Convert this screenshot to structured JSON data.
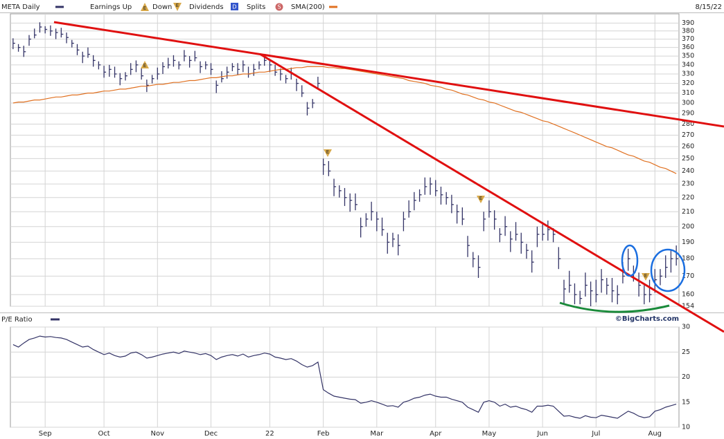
{
  "chart_data": [
    {
      "type": "ohlc",
      "title": "META Daily",
      "date": "8/15/22",
      "legend": {
        "earnings_up": "Earnings Up",
        "down": "Down",
        "dividends": "Dividends",
        "splits": "Splits"
      },
      "icons": {
        "earnings_up": "E",
        "earnings_down": "E",
        "dividends": "D",
        "splits": "S"
      },
      "credit": "©BigCharts.com",
      "log_scale": true,
      "grid": true,
      "ylim": [
        154,
        402
      ],
      "yticks": [
        154,
        160,
        170,
        180,
        190,
        200,
        210,
        220,
        230,
        240,
        250,
        260,
        270,
        280,
        290,
        300,
        310,
        320,
        330,
        340,
        350,
        360,
        370,
        380,
        390
      ],
      "series": [
        {
          "name": "META Daily",
          "color": "#333366",
          "high": [
            371,
            364,
            362,
            375,
            383,
            391,
            386,
            387,
            383,
            384,
            378,
            369,
            364,
            355,
            360,
            351,
            344,
            339,
            340,
            338,
            331,
            332,
            342,
            345,
            336,
            324,
            329,
            337,
            343,
            348,
            351,
            344,
            357,
            350,
            356,
            344,
            344,
            342,
            323,
            333,
            338,
            342,
            342,
            345,
            338,
            341,
            344,
            352,
            345,
            340,
            336,
            329,
            337,
            325,
            318,
            301,
            304,
            327,
            250,
            248,
            234,
            229,
            227,
            223,
            223,
            206,
            209,
            217,
            210,
            206,
            196,
            196,
            195,
            210,
            218,
            224,
            226,
            235,
            235,
            233,
            228,
            224,
            222,
            215,
            213,
            194,
            184,
            182,
            210,
            218,
            211,
            199,
            207,
            197,
            203,
            196,
            189,
            185,
            200,
            203,
            204,
            199,
            187,
            168,
            173,
            166,
            162,
            172,
            167,
            168,
            174,
            169,
            169,
            165,
            178,
            186,
            176,
            172,
            165,
            168,
            174,
            174,
            182,
            185,
            188
          ],
          "low": [
            358,
            355,
            349,
            362,
            371,
            378,
            377,
            374,
            370,
            372,
            365,
            360,
            351,
            342,
            348,
            338,
            335,
            326,
            327,
            326,
            318,
            323,
            329,
            332,
            324,
            311,
            320,
            324,
            330,
            336,
            338,
            335,
            344,
            337,
            344,
            331,
            335,
            329,
            310,
            321,
            325,
            333,
            329,
            332,
            326,
            328,
            335,
            339,
            332,
            328,
            323,
            320,
            324,
            312,
            306,
            288,
            295,
            314,
            237,
            236,
            221,
            220,
            214,
            210,
            211,
            193,
            200,
            204,
            197,
            194,
            183,
            187,
            182,
            197,
            206,
            211,
            217,
            222,
            222,
            221,
            215,
            215,
            209,
            202,
            201,
            181,
            175,
            169,
            197,
            206,
            198,
            190,
            194,
            184,
            191,
            183,
            180,
            172,
            187,
            191,
            191,
            190,
            174,
            155,
            161,
            155,
            155,
            159,
            154,
            156,
            161,
            160,
            156,
            155,
            166,
            173,
            167,
            159,
            155,
            156,
            161,
            165,
            169,
            172,
            176
          ],
          "close": [
            365,
            360,
            355,
            370,
            375,
            385,
            382,
            380,
            378,
            376,
            372,
            365,
            357,
            350,
            352,
            345,
            340,
            332,
            335,
            330,
            325,
            328,
            335,
            340,
            328,
            318,
            325,
            330,
            338,
            340,
            345,
            340,
            350,
            345,
            348,
            338,
            340,
            335,
            318,
            325,
            332,
            338,
            335,
            340,
            330,
            335,
            340,
            345,
            340,
            332,
            330,
            325,
            330,
            320,
            310,
            295,
            300,
            320,
            245,
            240,
            228,
            225,
            220,
            218,
            215,
            200,
            205,
            210,
            205,
            198,
            190,
            192,
            188,
            205,
            210,
            218,
            222,
            228,
            230,
            225,
            222,
            220,
            215,
            210,
            205,
            188,
            180,
            175,
            205,
            210,
            205,
            195,
            200,
            192,
            195,
            190,
            185,
            178,
            195,
            195,
            198,
            195,
            180,
            163,
            165,
            160,
            158,
            165,
            162,
            160,
            168,
            165,
            162,
            160,
            170,
            180,
            172,
            165,
            160,
            160,
            168,
            170,
            175,
            180,
            180
          ]
        },
        {
          "name": "SMA(200)",
          "color": "#e07020",
          "values": [
            300,
            301,
            301,
            302,
            303,
            303,
            304,
            305,
            306,
            306,
            307,
            308,
            308,
            309,
            310,
            310,
            311,
            312,
            312,
            313,
            314,
            314,
            315,
            316,
            317,
            317,
            318,
            319,
            319,
            320,
            321,
            321,
            322,
            323,
            323,
            324,
            325,
            326,
            326,
            327,
            328,
            328,
            329,
            330,
            330,
            331,
            332,
            332,
            333,
            334,
            335,
            335,
            336,
            337,
            337,
            338,
            338,
            338,
            338,
            337,
            337,
            336,
            336,
            335,
            334,
            333,
            332,
            331,
            330,
            329,
            328,
            327,
            326,
            325,
            323,
            322,
            321,
            320,
            318,
            317,
            316,
            314,
            313,
            311,
            309,
            308,
            306,
            304,
            303,
            301,
            300,
            298,
            296,
            294,
            292,
            291,
            289,
            287,
            285,
            283,
            282,
            280,
            278,
            276,
            274,
            272,
            270,
            268,
            266,
            264,
            262,
            260,
            259,
            257,
            255,
            253,
            252,
            250,
            248,
            247,
            245,
            243,
            242,
            240,
            238
          ]
        }
      ]
    },
    {
      "type": "line",
      "title": "P/E Ratio",
      "color": "#333366",
      "grid": true,
      "ylim": [
        10,
        30
      ],
      "yticks": [
        10,
        15,
        20,
        25,
        30
      ],
      "categories": [
        null,
        null,
        null,
        null,
        null,
        null,
        "Sep",
        null,
        null,
        null,
        null,
        null,
        null,
        null,
        null,
        null,
        null,
        "Oct",
        null,
        null,
        null,
        null,
        null,
        null,
        null,
        null,
        null,
        "Nov",
        null,
        null,
        null,
        null,
        null,
        null,
        null,
        null,
        null,
        "Dec",
        null,
        null,
        null,
        null,
        null,
        null,
        null,
        null,
        null,
        null,
        "22",
        null,
        null,
        null,
        null,
        null,
        null,
        null,
        null,
        null,
        "Feb",
        null,
        null,
        null,
        null,
        null,
        null,
        null,
        null,
        null,
        "Mar",
        null,
        null,
        null,
        null,
        null,
        null,
        null,
        null,
        null,
        null,
        "Apr",
        null,
        null,
        null,
        null,
        null,
        null,
        null,
        null,
        null,
        "May",
        null,
        null,
        null,
        null,
        null,
        null,
        null,
        null,
        null,
        "Jun",
        null,
        null,
        null,
        null,
        null,
        null,
        null,
        null,
        null,
        "Jul",
        null,
        null,
        null,
        null,
        null,
        null,
        null,
        null,
        null,
        null,
        "Aug",
        null,
        null,
        null,
        null
      ],
      "values": [
        26.5,
        26.0,
        26.8,
        27.5,
        27.8,
        28.2,
        28.0,
        28.1,
        27.9,
        27.8,
        27.5,
        27.0,
        26.5,
        26.0,
        26.2,
        25.5,
        25.0,
        24.5,
        24.8,
        24.3,
        24.0,
        24.2,
        24.8,
        25.0,
        24.5,
        23.8,
        24.0,
        24.3,
        24.6,
        24.8,
        25.0,
        24.7,
        25.2,
        25.0,
        24.8,
        24.5,
        24.7,
        24.3,
        23.5,
        24.0,
        24.3,
        24.5,
        24.2,
        24.6,
        24.0,
        24.3,
        24.5,
        24.8,
        24.6,
        24.0,
        23.8,
        23.5,
        23.7,
        23.2,
        22.5,
        22.0,
        22.3,
        23.0,
        17.5,
        16.8,
        16.2,
        16.0,
        15.8,
        15.6,
        15.5,
        14.8,
        15.0,
        15.3,
        15.0,
        14.6,
        14.2,
        14.3,
        14.0,
        15.0,
        15.3,
        15.8,
        16.0,
        16.4,
        16.6,
        16.2,
        16.0,
        16.0,
        15.6,
        15.3,
        15.0,
        14.0,
        13.5,
        13.0,
        15.0,
        15.3,
        15.0,
        14.2,
        14.6,
        14.0,
        14.2,
        13.8,
        13.5,
        13.0,
        14.2,
        14.2,
        14.4,
        14.2,
        13.2,
        12.2,
        12.3,
        12.0,
        11.8,
        12.3,
        12.0,
        11.9,
        12.4,
        12.2,
        12.0,
        11.8,
        12.5,
        13.2,
        12.8,
        12.2,
        11.9,
        12.1,
        13.2,
        13.5,
        14.0,
        14.3,
        14.6
      ]
    }
  ]
}
